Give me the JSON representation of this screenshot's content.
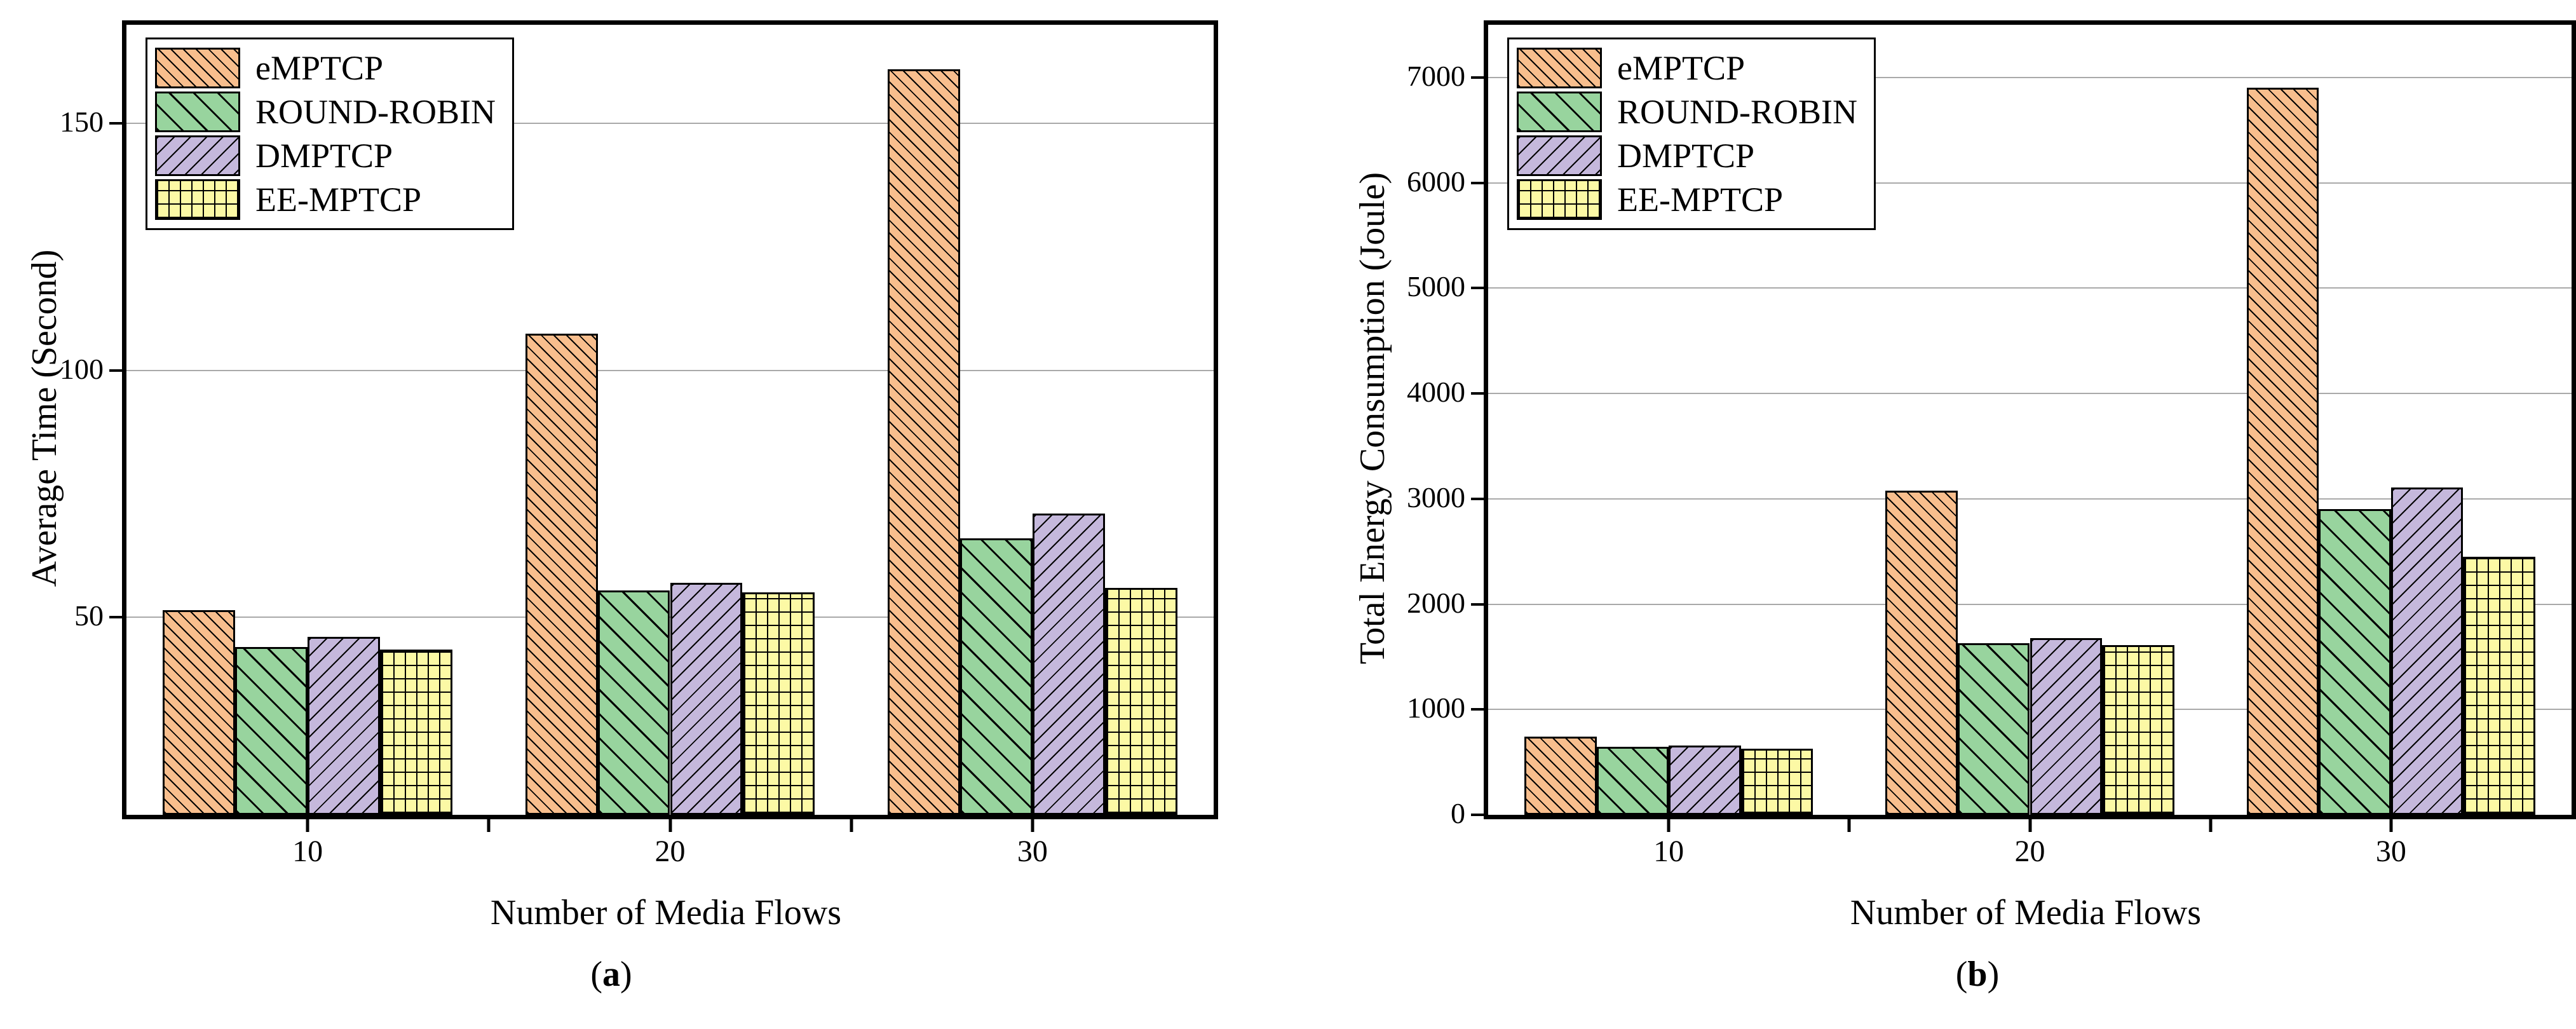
{
  "figure": {
    "background": "#ffffff",
    "panel_open": "(",
    "panel_close": ")"
  },
  "colors": {
    "frame": "#000000",
    "grid": "#a9a9a9",
    "text": "#000000",
    "emptcp_fill": "#F8BE8D",
    "round_robin_fill": "#98D49E",
    "dmptcp_fill": "#C5B8DC",
    "ee_mptcp_fill": "#FCF9A5"
  },
  "chart_data": [
    {
      "type": "bar",
      "panel_letter": "a",
      "title": "",
      "xlabel": "Number of Media Flows",
      "ylabel": "Average Time (Second)",
      "categories": [
        "10",
        "20",
        "30"
      ],
      "series": [
        {
          "name": "eMPTCP",
          "fill": "#F8BE8D",
          "hatch": "diag-up-fine",
          "values": [
            51.5,
            107.5,
            161
          ]
        },
        {
          "name": "ROUND-ROBIN",
          "fill": "#98D49E",
          "hatch": "diag-up-wide",
          "values": [
            44,
            55.5,
            66
          ]
        },
        {
          "name": "DMPTCP",
          "fill": "#C5B8DC",
          "hatch": "diag-down",
          "values": [
            46,
            57,
            71
          ]
        },
        {
          "name": "EE-MPTCP",
          "fill": "#FCF9A5",
          "hatch": "grid",
          "values": [
            43.5,
            55,
            56
          ]
        }
      ],
      "ylim": [
        10,
        170
      ],
      "yticks": [
        50,
        100,
        150
      ],
      "grid": true,
      "legend_position": "top-left"
    },
    {
      "type": "bar",
      "panel_letter": "b",
      "title": "",
      "xlabel": "Number of Media Flows",
      "ylabel": "Total Energy Consumption (Joule)",
      "categories": [
        "10",
        "20",
        "30"
      ],
      "series": [
        {
          "name": "eMPTCP",
          "fill": "#F8BE8D",
          "hatch": "diag-up-fine",
          "values": [
            745,
            3080,
            6900
          ]
        },
        {
          "name": "ROUND-ROBIN",
          "fill": "#98D49E",
          "hatch": "diag-up-wide",
          "values": [
            645,
            1630,
            2900
          ]
        },
        {
          "name": "DMPTCP",
          "fill": "#C5B8DC",
          "hatch": "diag-down",
          "values": [
            660,
            1675,
            3110
          ]
        },
        {
          "name": "EE-MPTCP",
          "fill": "#FCF9A5",
          "hatch": "grid",
          "values": [
            630,
            1610,
            2450
          ]
        }
      ],
      "ylim": [
        0,
        7500
      ],
      "yticks": [
        0,
        1000,
        2000,
        3000,
        4000,
        5000,
        6000,
        7000
      ],
      "grid": true,
      "legend_position": "top-left"
    }
  ]
}
